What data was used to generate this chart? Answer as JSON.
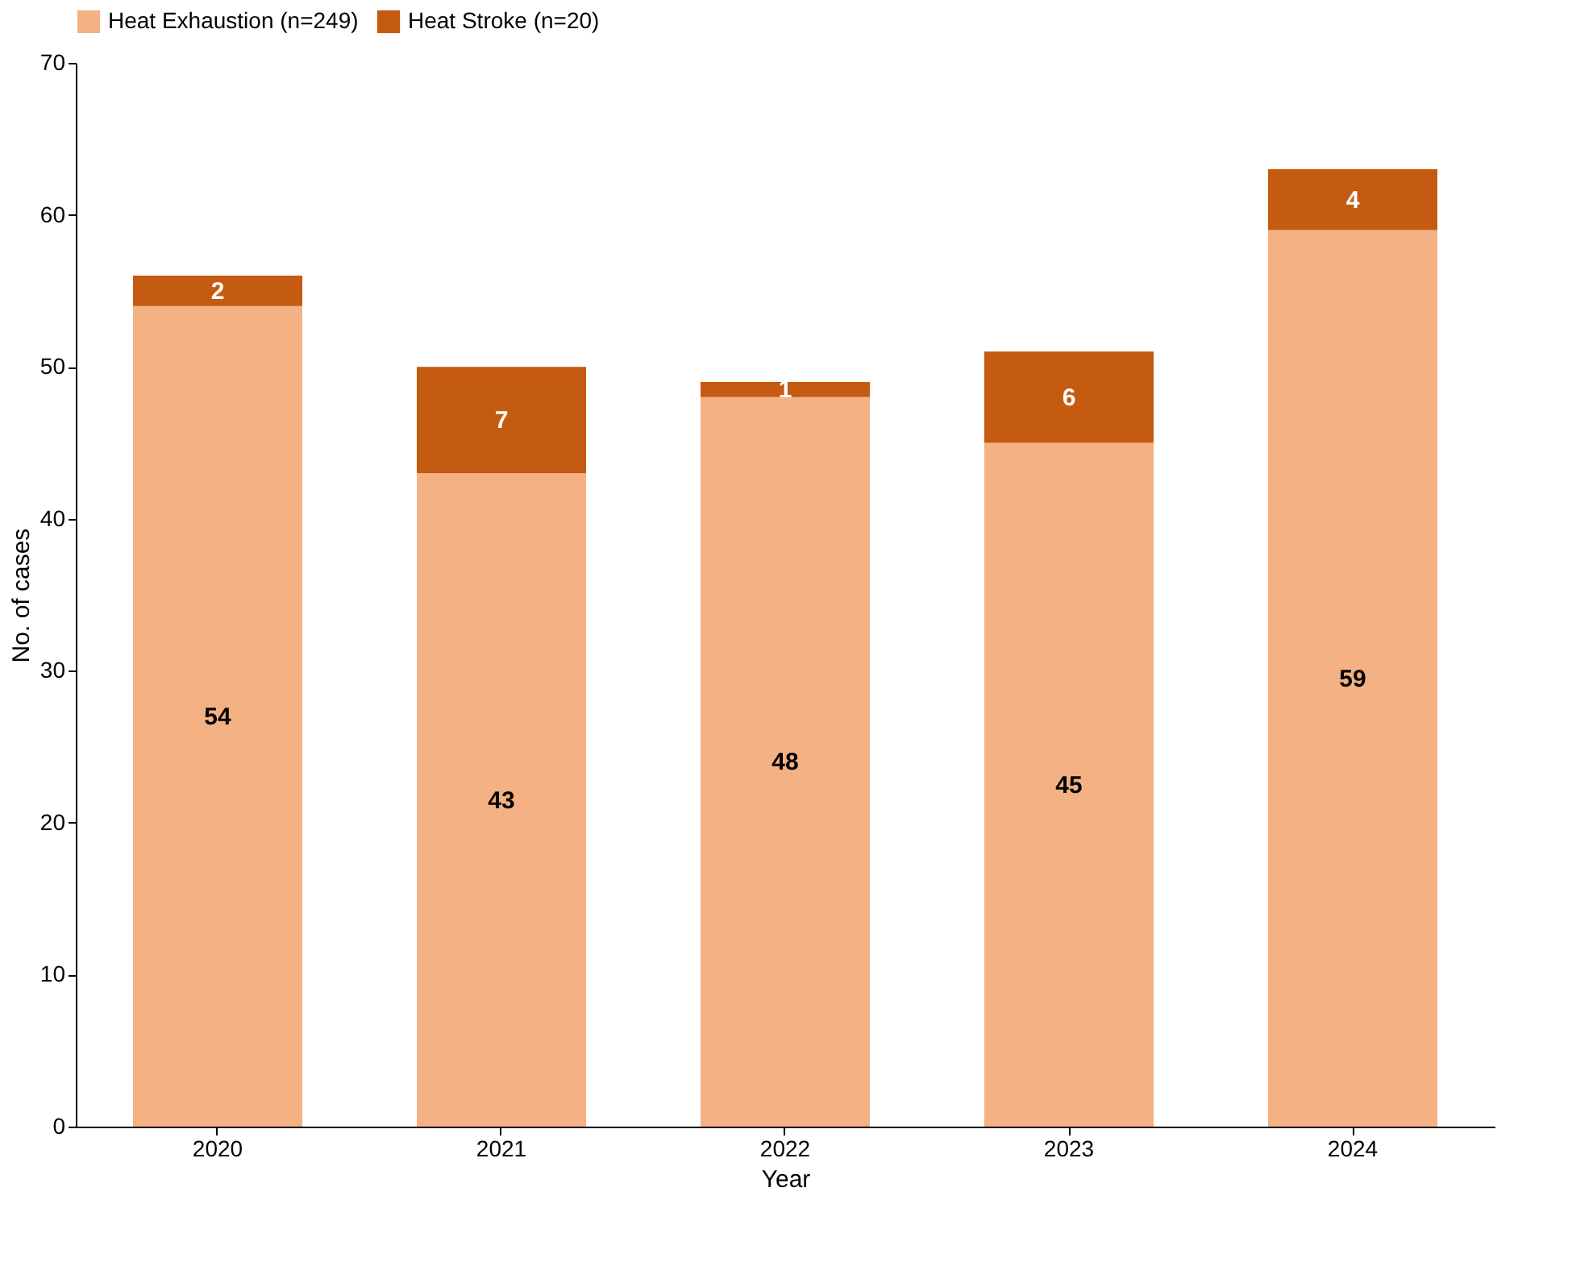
{
  "chart_data": {
    "type": "bar",
    "stacked": true,
    "xlabel": "Year",
    "ylabel": "No. of cases",
    "categories": [
      "2020",
      "2021",
      "2022",
      "2023",
      "2024"
    ],
    "series": [
      {
        "name": "Heat Exhaustion (n=249)",
        "color": "#f4b183",
        "values": [
          54,
          43,
          48,
          45,
          59
        ]
      },
      {
        "name": "Heat Stroke (n=20)",
        "color": "#c55a11",
        "values": [
          2,
          7,
          1,
          6,
          4
        ]
      }
    ],
    "ylim": [
      0,
      70
    ],
    "yticks": [
      0,
      10,
      20,
      30,
      40,
      50,
      60,
      70
    ],
    "grid": false,
    "legend": "top",
    "data_labels": true
  }
}
